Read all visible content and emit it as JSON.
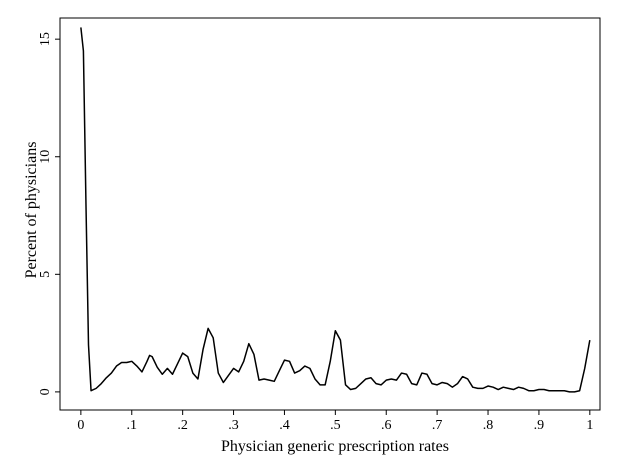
{
  "chart_data": {
    "type": "line",
    "xlabel": "Physician generic prescription rates",
    "ylabel": "Percent of physicians",
    "color": "#000000",
    "x": [
      0,
      0.005,
      0.01,
      0.015,
      0.02,
      0.03,
      0.04,
      0.05,
      0.06,
      0.07,
      0.08,
      0.09,
      0.1,
      0.11,
      0.12,
      0.13,
      0.135,
      0.14,
      0.15,
      0.16,
      0.17,
      0.18,
      0.19,
      0.2,
      0.21,
      0.22,
      0.23,
      0.24,
      0.25,
      0.26,
      0.27,
      0.28,
      0.29,
      0.3,
      0.31,
      0.32,
      0.33,
      0.34,
      0.35,
      0.36,
      0.37,
      0.38,
      0.39,
      0.4,
      0.41,
      0.42,
      0.43,
      0.44,
      0.45,
      0.46,
      0.47,
      0.48,
      0.49,
      0.5,
      0.51,
      0.52,
      0.53,
      0.54,
      0.55,
      0.56,
      0.57,
      0.58,
      0.59,
      0.6,
      0.61,
      0.62,
      0.63,
      0.64,
      0.65,
      0.66,
      0.67,
      0.68,
      0.69,
      0.7,
      0.71,
      0.72,
      0.73,
      0.74,
      0.75,
      0.76,
      0.77,
      0.78,
      0.79,
      0.8,
      0.81,
      0.82,
      0.83,
      0.84,
      0.85,
      0.86,
      0.87,
      0.88,
      0.89,
      0.9,
      0.91,
      0.92,
      0.93,
      0.94,
      0.95,
      0.96,
      0.97,
      0.98,
      0.99,
      1
    ],
    "values": [
      15.5,
      14.5,
      8,
      2,
      0.05,
      0.15,
      0.35,
      0.6,
      0.8,
      1.1,
      1.25,
      1.25,
      1.3,
      1.1,
      0.85,
      1.3,
      1.55,
      1.5,
      1.05,
      0.75,
      1.0,
      0.75,
      1.2,
      1.65,
      1.5,
      0.8,
      0.55,
      1.8,
      2.7,
      2.3,
      0.8,
      0.4,
      0.7,
      1.0,
      0.85,
      1.3,
      2.05,
      1.6,
      0.5,
      0.55,
      0.5,
      0.45,
      0.9,
      1.35,
      1.3,
      0.8,
      0.9,
      1.1,
      1.0,
      0.55,
      0.3,
      0.3,
      1.3,
      2.6,
      2.2,
      0.3,
      0.1,
      0.15,
      0.35,
      0.55,
      0.6,
      0.35,
      0.3,
      0.5,
      0.55,
      0.5,
      0.8,
      0.75,
      0.35,
      0.3,
      0.8,
      0.75,
      0.35,
      0.3,
      0.4,
      0.35,
      0.2,
      0.35,
      0.65,
      0.55,
      0.2,
      0.15,
      0.15,
      0.25,
      0.2,
      0.1,
      0.2,
      0.15,
      0.1,
      0.2,
      0.15,
      0.05,
      0.05,
      0.1,
      0.1,
      0.05,
      0.05,
      0.05,
      0.05,
      0,
      0,
      0.05,
      1.0,
      2.2
    ],
    "xlim": [
      -0.041,
      1.02
    ],
    "ylim": [
      -0.77,
      15.9
    ],
    "xticks": [
      0,
      {
        "value": 0.1,
        "label": ".1"
      },
      {
        "value": 0.2,
        "label": ".2"
      },
      {
        "value": 0.3,
        "label": ".3"
      },
      {
        "value": 0.4,
        "label": ".4"
      },
      {
        "value": 0.5,
        "label": ".5"
      },
      {
        "value": 0.6,
        "label": ".6"
      },
      {
        "value": 0.7,
        "label": ".7"
      },
      {
        "value": 0.8,
        "label": ".8"
      },
      {
        "value": 0.9,
        "label": ".9"
      },
      1
    ],
    "yticks": [
      0,
      5,
      10,
      15
    ]
  }
}
